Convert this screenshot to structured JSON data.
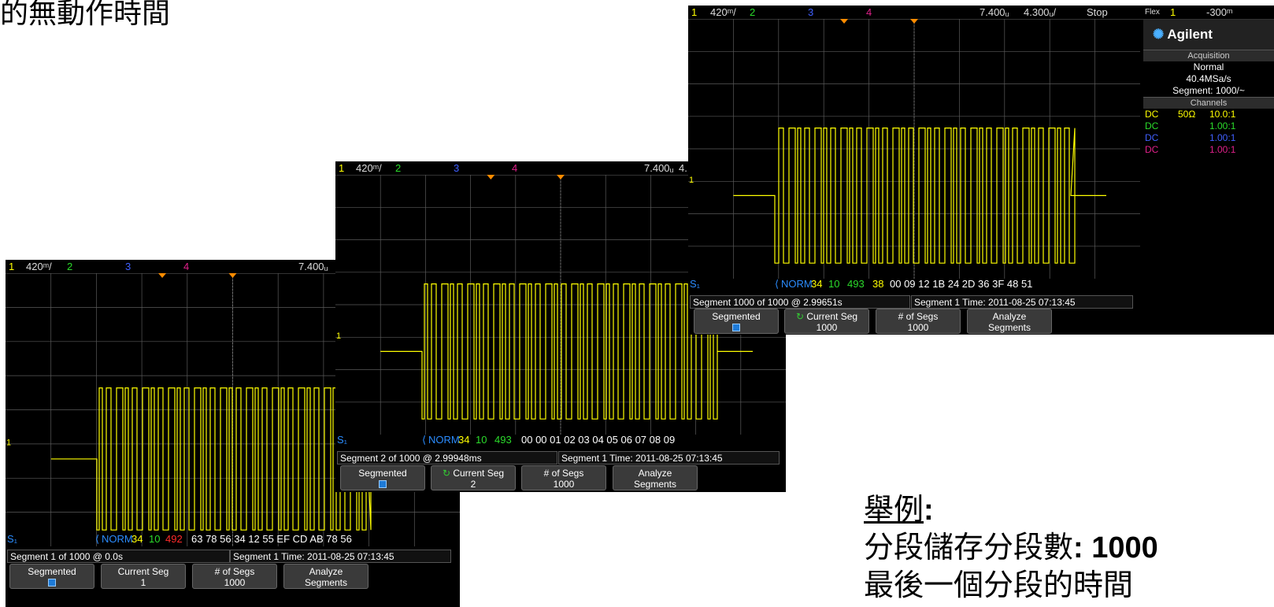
{
  "slide": {
    "title_fragment": "的無動作時間",
    "caption": {
      "heading": "舉例",
      "colon": ":",
      "line2_label": "分段儲存分段數",
      "line2_colon": ":",
      "line2_value": "1000",
      "line3": "最後一個分段的時間"
    }
  },
  "colors": {
    "trace": "#ffff00",
    "ch1": "#ffff00",
    "ch2": "#2bdc2b",
    "ch3": "#4060ff",
    "ch4": "#e0208a",
    "bus": "#2b8cff",
    "grid": "#5a5a5a"
  },
  "screens": [
    {
      "name": "back",
      "topbar": {
        "ch1": "1",
        "ch1_scale": "420ᵐ/",
        "ch2": "2",
        "ch3": "3",
        "ch4": "4",
        "time_scale": "7.400ᵤ"
      },
      "bus_label": "S₁",
      "bus_decode": {
        "mode": "NORM",
        "b1": "34",
        "b2": "10",
        "b3": "492",
        "bytes": "63 78 56 34 12 55 EF CD AB 78 56"
      },
      "segment_info": "Segment   1 of 1000 @ 0.0s",
      "time_info": "Segment 1 Time: 2011-08-25 07:13:45",
      "softkeys": [
        {
          "label": "Segmented",
          "value": ""
        },
        {
          "label": "Current Seg",
          "value": "1"
        },
        {
          "label": "# of Segs",
          "value": "1000"
        },
        {
          "label": "Analyze",
          "value": "Segments"
        }
      ]
    },
    {
      "name": "middle",
      "topbar": {
        "ch1": "1",
        "ch1_scale": "420ᵐ/",
        "ch2": "2",
        "ch3": "3",
        "ch4": "4",
        "time_scale": "7.400ᵤ",
        "extra": "4."
      },
      "bus_label": "S₁",
      "bus_decode": {
        "mode": "NORM",
        "b1": "34",
        "b2": "10",
        "b3": "493",
        "bytes": "00 00 01 02 03 04 05 06 07 08 09"
      },
      "segment_info": "Segment   2 of 1000 @ 2.99948ms",
      "time_info": "Segment 1 Time: 2011-08-25 07:13:45",
      "softkeys": [
        {
          "label": "Segmented",
          "value": ""
        },
        {
          "label": "Current Seg",
          "value": "2"
        },
        {
          "label": "# of Segs",
          "value": "1000"
        },
        {
          "label": "Analyze",
          "value": "Segments"
        }
      ]
    },
    {
      "name": "front",
      "topbar": {
        "ch1": "1",
        "ch1_scale": "420ᵐ/",
        "ch2": "2",
        "ch3": "3",
        "ch4": "4",
        "time_scale": "7.400ᵤ",
        "delay": "4.300ᵤ/",
        "run_state": "Stop",
        "flex": "Flex",
        "trig_ch": "1",
        "trig_level": "-300ᵐ"
      },
      "bus_label": "S₁",
      "bus_decode": {
        "mode": "NORM",
        "b1": "34",
        "b2": "10",
        "b3": "493",
        "b4": "38",
        "bytes": "00 09 12 1B 24 2D 36 3F 48 51"
      },
      "segment_info": "Segment 1000 of 1000 @ 2.99651s",
      "time_info": "Segment 1 Time: 2011-08-25 07:13:45",
      "softkeys": [
        {
          "label": "Segmented",
          "value": ""
        },
        {
          "label": "Current Seg",
          "value": "1000"
        },
        {
          "label": "# of Segs",
          "value": "1000"
        },
        {
          "label": "Analyze",
          "value": "Segments"
        }
      ],
      "side_panel": {
        "brand": "Agilent",
        "acq_header": "Acquisition",
        "acq_mode": "Normal",
        "sample_rate": "40.4MSa/s",
        "segment": "Segment: 1000/~",
        "channels_header": "Channels",
        "channels": [
          {
            "coupling": "DC",
            "imp": "50Ω",
            "probe": "10.0:1"
          },
          {
            "coupling": "DC",
            "imp": "",
            "probe": "1.00:1"
          },
          {
            "coupling": "DC",
            "imp": "",
            "probe": "1.00:1"
          },
          {
            "coupling": "DC",
            "imp": "",
            "probe": "1.00:1"
          }
        ]
      }
    }
  ]
}
